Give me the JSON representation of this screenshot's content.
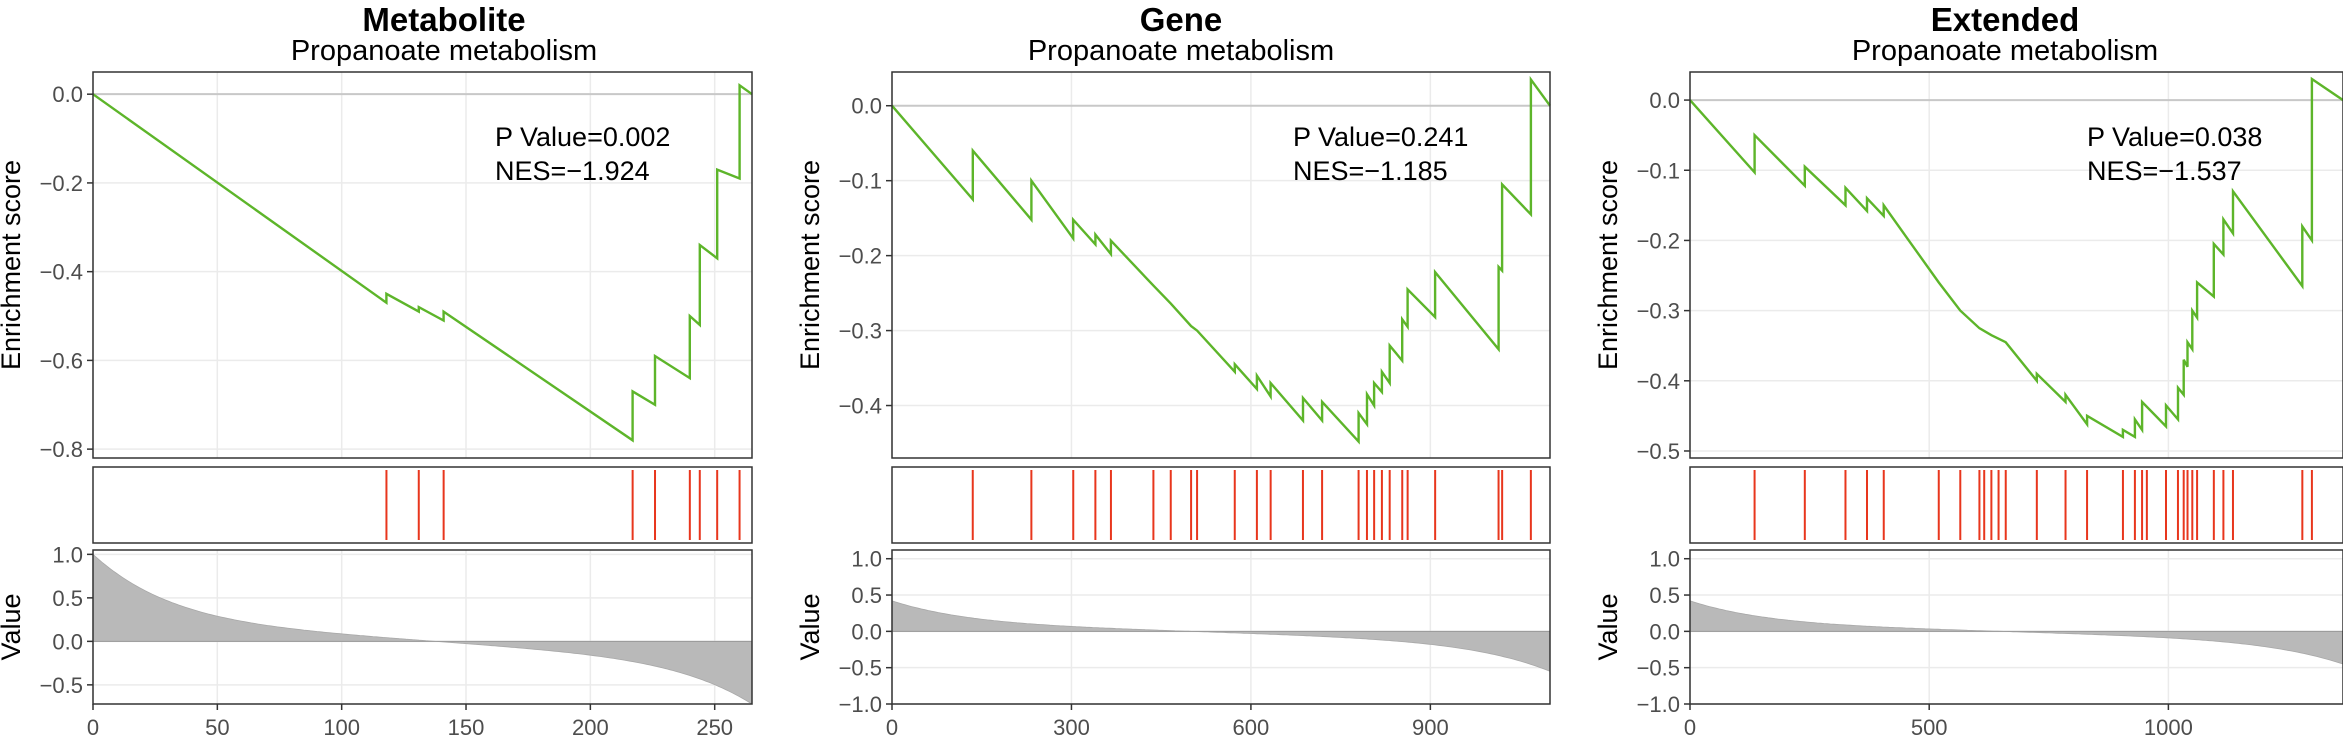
{
  "chart_data": [
    {
      "type": "line",
      "title": "Metabolite",
      "subtitle": "Propanoate metabolism",
      "ylabel": "Enrichment score",
      "lower_ylabel": "Value",
      "annotation": [
        "P Value=0.002",
        "NES=−1.924"
      ],
      "xlim": [
        0,
        265
      ],
      "xticks": [
        "0",
        "50",
        "100",
        "150",
        "200",
        "250"
      ],
      "xtick_values": [
        0,
        50,
        100,
        150,
        200,
        250
      ],
      "ylim": [
        -0.82,
        0.05
      ],
      "yticks": [
        "0.0",
        "−0.2",
        "−0.4",
        "−0.6",
        "−0.8"
      ],
      "ytick_values": [
        0,
        -0.2,
        -0.4,
        -0.6,
        -0.8
      ],
      "hits": [
        118,
        131,
        141,
        217,
        226,
        240,
        244,
        251,
        260
      ],
      "es_curve": [
        [
          0,
          0
        ],
        [
          118,
          -0.47
        ],
        [
          118,
          -0.45
        ],
        [
          131,
          -0.49
        ],
        [
          131,
          -0.48
        ],
        [
          141,
          -0.51
        ],
        [
          141,
          -0.49
        ],
        [
          217,
          -0.78
        ],
        [
          217,
          -0.67
        ],
        [
          226,
          -0.7
        ],
        [
          226,
          -0.59
        ],
        [
          240,
          -0.64
        ],
        [
          240,
          -0.5
        ],
        [
          244,
          -0.52
        ],
        [
          244,
          -0.34
        ],
        [
          251,
          -0.37
        ],
        [
          251,
          -0.17
        ],
        [
          260,
          -0.19
        ],
        [
          260,
          0.02
        ],
        [
          265,
          0
        ]
      ],
      "value_panel": {
        "n": 265,
        "start": 1.0,
        "end": -0.72,
        "ylim": [
          -0.72,
          1.05
        ],
        "yticks": [
          "1.0",
          "0.5",
          "0.0",
          "−0.5"
        ],
        "ytick_values": [
          1.0,
          0.5,
          0.0,
          -0.5
        ]
      },
      "colors": {
        "curve": "#5db52a",
        "hit": "#e8361d",
        "bar": "#b9b9b9",
        "zero": "#c8c8c8"
      }
    },
    {
      "type": "line",
      "title": "Gene",
      "subtitle": "Propanoate metabolism",
      "ylabel": "Enrichment score",
      "lower_ylabel": "Value",
      "annotation": [
        "P Value=0.241",
        "NES=−1.185"
      ],
      "xlim": [
        0,
        1100
      ],
      "xticks": [
        "0",
        "300",
        "600",
        "900"
      ],
      "xtick_values": [
        0,
        300,
        600,
        900
      ],
      "ylim": [
        -0.47,
        0.045
      ],
      "yticks": [
        "0.0",
        "−0.1",
        "−0.2",
        "−0.3",
        "−0.4"
      ],
      "ytick_values": [
        0,
        -0.1,
        -0.2,
        -0.3,
        -0.4
      ],
      "hits": [
        135,
        233,
        303,
        340,
        366,
        437,
        466,
        500,
        510,
        573,
        610,
        633,
        687,
        719,
        780,
        794,
        806,
        819,
        832,
        853,
        862,
        908,
        1014,
        1020,
        1068
      ],
      "es_curve": [
        [
          0,
          0
        ],
        [
          135,
          -0.125
        ],
        [
          135,
          -0.06
        ],
        [
          233,
          -0.152
        ],
        [
          233,
          -0.1
        ],
        [
          303,
          -0.177
        ],
        [
          303,
          -0.152
        ],
        [
          340,
          -0.185
        ],
        [
          340,
          -0.172
        ],
        [
          366,
          -0.198
        ],
        [
          366,
          -0.18
        ],
        [
          437,
          -0.24
        ],
        [
          466,
          -0.264
        ],
        [
          500,
          -0.294
        ],
        [
          510,
          -0.3
        ],
        [
          573,
          -0.355
        ],
        [
          573,
          -0.345
        ],
        [
          610,
          -0.378
        ],
        [
          610,
          -0.36
        ],
        [
          633,
          -0.388
        ],
        [
          633,
          -0.37
        ],
        [
          687,
          -0.42
        ],
        [
          687,
          -0.39
        ],
        [
          719,
          -0.42
        ],
        [
          719,
          -0.395
        ],
        [
          780,
          -0.448
        ],
        [
          780,
          -0.41
        ],
        [
          794,
          -0.425
        ],
        [
          794,
          -0.385
        ],
        [
          806,
          -0.4
        ],
        [
          806,
          -0.37
        ],
        [
          819,
          -0.382
        ],
        [
          819,
          -0.355
        ],
        [
          832,
          -0.37
        ],
        [
          832,
          -0.32
        ],
        [
          853,
          -0.34
        ],
        [
          853,
          -0.285
        ],
        [
          862,
          -0.295
        ],
        [
          862,
          -0.245
        ],
        [
          908,
          -0.282
        ],
        [
          908,
          -0.222
        ],
        [
          1014,
          -0.325
        ],
        [
          1014,
          -0.215
        ],
        [
          1020,
          -0.22
        ],
        [
          1020,
          -0.105
        ],
        [
          1068,
          -0.145
        ],
        [
          1068,
          0.035
        ],
        [
          1100,
          0
        ]
      ],
      "value_panel": {
        "n": 1100,
        "start": 0.42,
        "end": -0.55,
        "ylim": [
          -1.0,
          1.12
        ],
        "yticks": [
          "1.0",
          "0.5",
          "0.0",
          "−0.5",
          "−1.0"
        ],
        "ytick_values": [
          1.0,
          0.5,
          0.0,
          -0.5,
          -1.0
        ]
      },
      "colors": {
        "curve": "#5db52a",
        "hit": "#e8361d",
        "bar": "#b9b9b9",
        "zero": "#c8c8c8"
      }
    },
    {
      "type": "line",
      "title": "Extended",
      "subtitle": "Propanoate metabolism",
      "ylabel": "Enrichment score",
      "lower_ylabel": "Value",
      "annotation": [
        "P Value=0.038",
        "NES=−1.537"
      ],
      "xlim": [
        0,
        1365
      ],
      "xticks": [
        "0",
        "500",
        "1000"
      ],
      "xtick_values": [
        0,
        500,
        1000
      ],
      "ylim": [
        -0.51,
        0.04
      ],
      "yticks": [
        "0.0",
        "−0.1",
        "−0.2",
        "−0.3",
        "−0.4",
        "−0.5"
      ],
      "ytick_values": [
        0,
        -0.1,
        -0.2,
        -0.3,
        -0.4,
        -0.5
      ],
      "hits": [
        135,
        240,
        325,
        370,
        405,
        520,
        565,
        605,
        615,
        630,
        645,
        660,
        725,
        785,
        830,
        905,
        930,
        945,
        955,
        995,
        1020,
        1032,
        1040,
        1050,
        1060,
        1095,
        1115,
        1135,
        1280,
        1300
      ],
      "es_curve": [
        [
          0,
          0
        ],
        [
          135,
          -0.103
        ],
        [
          135,
          -0.05
        ],
        [
          240,
          -0.122
        ],
        [
          240,
          -0.095
        ],
        [
          325,
          -0.15
        ],
        [
          325,
          -0.125
        ],
        [
          370,
          -0.158
        ],
        [
          370,
          -0.14
        ],
        [
          405,
          -0.165
        ],
        [
          405,
          -0.15
        ],
        [
          520,
          -0.26
        ],
        [
          565,
          -0.3
        ],
        [
          605,
          -0.325
        ],
        [
          630,
          -0.335
        ],
        [
          660,
          -0.345
        ],
        [
          725,
          -0.4
        ],
        [
          725,
          -0.39
        ],
        [
          785,
          -0.43
        ],
        [
          785,
          -0.42
        ],
        [
          830,
          -0.462
        ],
        [
          830,
          -0.45
        ],
        [
          905,
          -0.48
        ],
        [
          905,
          -0.47
        ],
        [
          930,
          -0.48
        ],
        [
          930,
          -0.455
        ],
        [
          945,
          -0.47
        ],
        [
          945,
          -0.43
        ],
        [
          995,
          -0.465
        ],
        [
          995,
          -0.435
        ],
        [
          1020,
          -0.455
        ],
        [
          1020,
          -0.41
        ],
        [
          1032,
          -0.42
        ],
        [
          1032,
          -0.37
        ],
        [
          1040,
          -0.38
        ],
        [
          1040,
          -0.345
        ],
        [
          1050,
          -0.355
        ],
        [
          1050,
          -0.3
        ],
        [
          1060,
          -0.31
        ],
        [
          1060,
          -0.26
        ],
        [
          1095,
          -0.28
        ],
        [
          1095,
          -0.205
        ],
        [
          1115,
          -0.22
        ],
        [
          1115,
          -0.17
        ],
        [
          1135,
          -0.19
        ],
        [
          1135,
          -0.13
        ],
        [
          1280,
          -0.265
        ],
        [
          1280,
          -0.18
        ],
        [
          1300,
          -0.2
        ],
        [
          1300,
          0.03
        ],
        [
          1365,
          0
        ]
      ],
      "value_panel": {
        "n": 1365,
        "start": 0.42,
        "end": -0.45,
        "ylim": [
          -1.0,
          1.12
        ],
        "yticks": [
          "1.0",
          "0.5",
          "0.0",
          "−0.5",
          "−1.0"
        ],
        "ytick_values": [
          1.0,
          0.5,
          0.0,
          -0.5,
          -1.0
        ]
      },
      "colors": {
        "curve": "#5db52a",
        "hit": "#e8361d",
        "bar": "#b9b9b9",
        "zero": "#c8c8c8"
      }
    }
  ]
}
